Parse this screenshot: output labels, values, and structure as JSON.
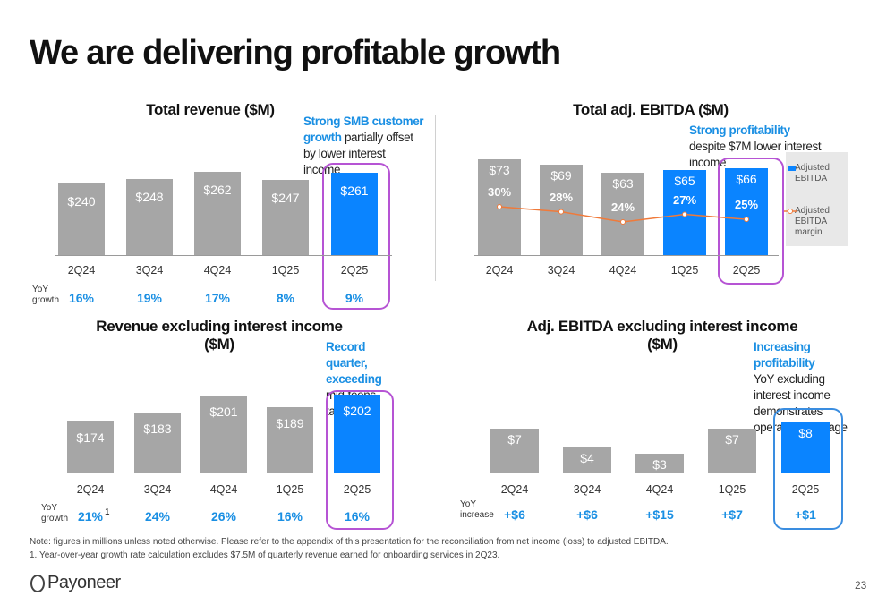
{
  "slide": {
    "title": "We are delivering profitable growth",
    "page_number": "23",
    "logo_text": "Payoneer",
    "note": "Note: figures in millions unless noted otherwise. Please refer to the appendix of this presentation for the reconciliation from net income (loss) to adjusted EBITDA.",
    "footnote": "1. Year-over-year growth rate calculation excludes $7.5M of quarterly revenue earned for onboarding services in 2Q23."
  },
  "colors": {
    "bar_gray": "#a6a6a6",
    "bar_blue": "#0a84ff",
    "accent_blue": "#1a8fe3",
    "highlight_purple": "#b654d4",
    "line_orange": "#f07a3a"
  },
  "annotations": {
    "revenue": {
      "highlight": "Strong SMB customer growth",
      "rest": " partially offset by lower interest income"
    },
    "ebitda": {
      "highlight": "Strong profitability",
      "rest": " despite $7M lower interest income"
    },
    "rev_ex": {
      "highlight": "Record quarter, exceeding",
      "rest": " mid-teens target"
    },
    "ebitda_ex": {
      "highlight": "Increasing profitability",
      "rest": "YoY excluding interest income demonstrates operating leverage"
    }
  },
  "labels": {
    "yoy_growth_1": "YoY",
    "yoy_growth_2": "growth",
    "yoy_increase_1": "YoY",
    "yoy_increase_2": "increase",
    "footnote_marker": "1"
  },
  "chart_data": [
    {
      "type": "bar",
      "title": "Total revenue ($M)",
      "categories": [
        "2Q24",
        "3Q24",
        "4Q24",
        "1Q25",
        "2Q25"
      ],
      "values": [
        240,
        248,
        262,
        247,
        261
      ],
      "value_labels": [
        "$240",
        "$248",
        "$262",
        "$247",
        "$261"
      ],
      "yoy_growth": [
        "16%",
        "19%",
        "17%",
        "8%",
        "9%"
      ],
      "highlight_index": 4
    },
    {
      "type": "bar",
      "title": "Total adj. EBITDA ($M)",
      "categories": [
        "2Q24",
        "3Q24",
        "4Q24",
        "1Q25",
        "2Q25"
      ],
      "series": [
        {
          "name": "Adjusted EBITDA",
          "values": [
            73,
            69,
            63,
            65,
            66
          ],
          "value_labels": [
            "$73",
            "$69",
            "$63",
            "$65",
            "$66"
          ]
        },
        {
          "name": "Adjusted EBITDA margin",
          "type": "line",
          "values": [
            30,
            28,
            24,
            27,
            25
          ],
          "value_labels": [
            "30%",
            "28%",
            "24%",
            "27%",
            "25%"
          ]
        }
      ],
      "blue_indices": [
        3,
        4
      ],
      "highlight_index": 4,
      "legend": "right"
    },
    {
      "type": "bar",
      "title": "Revenue excluding interest income ($M)",
      "categories": [
        "2Q24",
        "3Q24",
        "4Q24",
        "1Q25",
        "2Q25"
      ],
      "values": [
        174,
        183,
        201,
        189,
        202
      ],
      "value_labels": [
        "$174",
        "$183",
        "$201",
        "$189",
        "$202"
      ],
      "yoy_growth": [
        "21%",
        "24%",
        "26%",
        "16%",
        "16%"
      ],
      "highlight_index": 4
    },
    {
      "type": "bar",
      "title": "Adj. EBITDA excluding interest income ($M)",
      "categories": [
        "2Q24",
        "3Q24",
        "4Q24",
        "1Q25",
        "2Q25"
      ],
      "values": [
        7,
        4,
        3,
        7,
        8
      ],
      "value_labels": [
        "$7",
        "$4",
        "$3",
        "$7",
        "$8"
      ],
      "yoy_increase": [
        "+$6",
        "+$6",
        "+$15",
        "+$7",
        "+$1"
      ],
      "highlight_index": 4
    }
  ]
}
